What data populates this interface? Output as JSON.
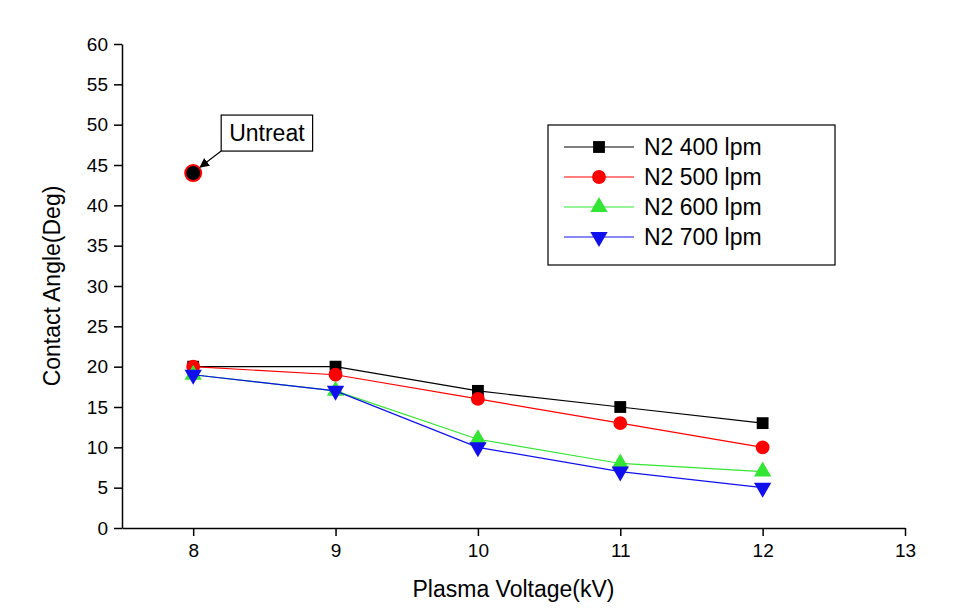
{
  "chart_data": {
    "type": "line",
    "x_label": "Plasma Voltage(kV)",
    "y_label": "Contact Angle(Deg)",
    "x": [
      8,
      9,
      10,
      11,
      12
    ],
    "series": [
      {
        "name": "N2 400 lpm",
        "color": "#000000",
        "marker": "square",
        "values": [
          20,
          20,
          17,
          15,
          13
        ]
      },
      {
        "name": "N2 500 lpm",
        "color": "#ff0000",
        "marker": "circle",
        "values": [
          20,
          19,
          16,
          13,
          10
        ]
      },
      {
        "name": "N2 600 lpm",
        "color": "#33e633",
        "marker": "triangle-up",
        "values": [
          19,
          17,
          11,
          8,
          7
        ]
      },
      {
        "name": "N2 700 lpm",
        "color": "#1010ee",
        "marker": "triangle-down",
        "values": [
          19,
          17,
          10,
          7,
          5
        ]
      }
    ],
    "annotations": [
      {
        "text": "Untreat",
        "x": 8,
        "y": 44
      }
    ],
    "xlim": [
      7.5,
      13
    ],
    "xticks": [
      8,
      9,
      10,
      11,
      12,
      13
    ],
    "ylim": [
      0,
      60
    ],
    "yticks": [
      0,
      5,
      10,
      15,
      20,
      25,
      30,
      35,
      40,
      45,
      50,
      55,
      60
    ],
    "legend": "upper right",
    "grid": false
  }
}
